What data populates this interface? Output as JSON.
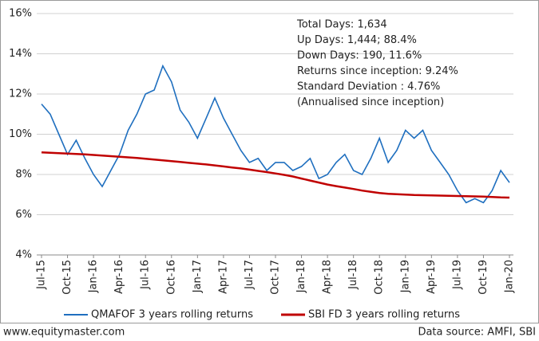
{
  "chart_data": {
    "type": "line",
    "categories": [
      "Jul-15",
      null,
      null,
      "Oct-15",
      null,
      null,
      "Jan-16",
      null,
      null,
      "Apr-16",
      null,
      null,
      "Jul-16",
      null,
      null,
      "Oct-16",
      null,
      null,
      "Jan-17",
      null,
      null,
      "Apr-17",
      null,
      null,
      "Jul-17",
      null,
      null,
      "Oct-17",
      null,
      null,
      "Jan-18",
      null,
      null,
      "Apr-18",
      null,
      null,
      "Jul-18",
      null,
      null,
      "Oct-18",
      null,
      null,
      "Jan-19",
      null,
      null,
      "Apr-19",
      null,
      null,
      "Jul-19",
      null,
      null,
      "Oct-19",
      null,
      null,
      "Jan-20"
    ],
    "series": [
      {
        "name": "QMAFOF 3 years rolling returns",
        "color": "#1f6fbf",
        "values": [
          11.5,
          11.0,
          10.0,
          9.0,
          9.7,
          8.8,
          8.0,
          7.4,
          8.2,
          9.0,
          10.2,
          11.0,
          12.0,
          12.2,
          13.4,
          12.6,
          11.2,
          10.6,
          9.8,
          10.8,
          11.8,
          10.8,
          10.0,
          9.2,
          8.6,
          8.8,
          8.2,
          8.6,
          8.6,
          8.2,
          8.4,
          8.8,
          7.8,
          8.0,
          8.6,
          9.0,
          8.2,
          8.0,
          8.8,
          9.8,
          8.6,
          9.2,
          10.2,
          9.8,
          10.2,
          9.2,
          8.6,
          8.0,
          7.2,
          6.6,
          6.8,
          6.6,
          7.2,
          8.2,
          7.6
        ]
      },
      {
        "name": "SBI FD 3 years rolling returns",
        "color": "#c00000",
        "values": [
          9.1,
          9.08,
          9.06,
          9.04,
          9.02,
          9.0,
          8.97,
          8.94,
          8.91,
          8.88,
          8.85,
          8.82,
          8.78,
          8.74,
          8.7,
          8.66,
          8.62,
          8.58,
          8.54,
          8.5,
          8.45,
          8.4,
          8.35,
          8.3,
          8.24,
          8.18,
          8.12,
          8.05,
          7.98,
          7.9,
          7.8,
          7.7,
          7.6,
          7.5,
          7.42,
          7.35,
          7.28,
          7.2,
          7.14,
          7.08,
          7.04,
          7.02,
          7.0,
          6.98,
          6.97,
          6.96,
          6.95,
          6.94,
          6.93,
          6.92,
          6.91,
          6.9,
          6.88,
          6.86,
          6.85
        ]
      }
    ],
    "ylim": [
      4,
      16
    ],
    "yticks": [
      {
        "value": 4,
        "label": "4%"
      },
      {
        "value": 6,
        "label": "6%"
      },
      {
        "value": 8,
        "label": "8%"
      },
      {
        "value": 10,
        "label": "10%"
      },
      {
        "value": 12,
        "label": "12%"
      },
      {
        "value": 14,
        "label": "14%"
      },
      {
        "value": 16,
        "label": "16%"
      }
    ],
    "grid": true,
    "legend": "bottom",
    "annotations": [
      "Total  Days: 1,634",
      "Up Days: 1,444; 88.4%",
      "Down Days: 190, 11.6%",
      "Returns since inception:  9.24%",
      "Standard Deviation : 4.76%",
      "(Annualised since inception)"
    ]
  },
  "footer": {
    "left": "www.equitymaster.com",
    "right": "Data source: AMFI, SBI"
  }
}
